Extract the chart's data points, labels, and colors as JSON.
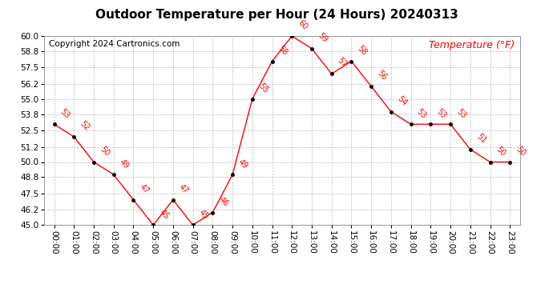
{
  "title": "Outdoor Temperature per Hour (24 Hours) 20240313",
  "copyright": "Copyright 2024 Cartronics.com",
  "legend_label": "Temperature (°F)",
  "hours": [
    "00:00",
    "01:00",
    "02:00",
    "03:00",
    "04:00",
    "05:00",
    "06:00",
    "07:00",
    "08:00",
    "09:00",
    "10:00",
    "11:00",
    "12:00",
    "13:00",
    "14:00",
    "15:00",
    "16:00",
    "17:00",
    "18:00",
    "19:00",
    "20:00",
    "21:00",
    "22:00",
    "23:00"
  ],
  "temperatures": [
    53,
    52,
    50,
    49,
    47,
    45,
    47,
    45,
    46,
    49,
    55,
    58,
    60,
    59,
    57,
    58,
    56,
    54,
    53,
    53,
    53,
    51,
    50,
    50
  ],
  "ylim": [
    45.0,
    60.0
  ],
  "yticks": [
    45.0,
    46.2,
    47.5,
    48.8,
    50.0,
    51.2,
    52.5,
    53.8,
    55.0,
    56.2,
    57.5,
    58.8,
    60.0
  ],
  "line_color": "red",
  "marker_color": "black",
  "grid_color": "#bbbbbb",
  "bg_color": "white",
  "title_color": "black",
  "copyright_color": "black",
  "legend_color": "red",
  "label_color": "red",
  "title_fontsize": 11,
  "copyright_fontsize": 7.5,
  "legend_fontsize": 9,
  "label_fontsize": 7,
  "tick_fontsize": 7.5
}
